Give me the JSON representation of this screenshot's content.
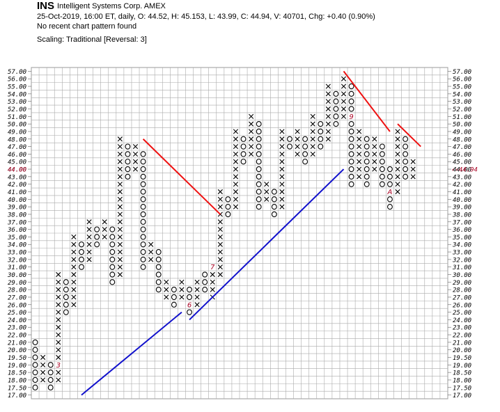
{
  "header": {
    "symbol": "INS",
    "company": "Intelligent Systems Corp.  AMEX",
    "ohlc_line": "25-Oct-2019, 16:00 ET, daily, O: 44.52, H: 45.153, L: 43.99, C: 44.94, V: 40701, Chg: +0.40 (0.90%)",
    "pattern_line": "No recent chart pattern found",
    "scaling_line": "Scaling: Traditional [Reversal: 3]"
  },
  "colors": {
    "x_mark": "#000000",
    "o_mark": "#000000",
    "month_label": "#aa0022",
    "resistance": "#ee1111",
    "support": "#1111cc",
    "grid": "#aaaaaa",
    "price_marker": "#aa0022"
  },
  "chart_data": {
    "type": "point_and_figure",
    "reversal": 3,
    "price_levels": [
      "17.00",
      "17.50",
      "18.00",
      "18.50",
      "19.00",
      "19.50",
      "20.00",
      "21.00",
      "22.00",
      "23.00",
      "24.00",
      "25.00",
      "26.00",
      "27.00",
      "28.00",
      "29.00",
      "30.00",
      "31.00",
      "32.00",
      "33.00",
      "34.00",
      "35.00",
      "36.00",
      "37.00",
      "38.00",
      "39.00",
      "40.00",
      "41.00",
      "42.00",
      "43.00",
      "44.00",
      "45.00",
      "46.00",
      "47.00",
      "48.00",
      "49.00",
      "50.00",
      "51.00",
      "52.00",
      "53.00",
      "54.00",
      "55.00",
      "56.00",
      "57.00"
    ],
    "current_price_left": "44.00",
    "current_price_right": "44.94",
    "columns": [
      {
        "type": "O",
        "high": "21.00",
        "low": "17.50"
      },
      {
        "type": "X",
        "high": "19.50",
        "low": "18.00"
      },
      {
        "type": "O",
        "high": "19.00",
        "low": "17.50"
      },
      {
        "type": "X",
        "high": "30.00",
        "low": "18.00"
      },
      {
        "type": "O",
        "high": "29.00",
        "low": "25.00"
      },
      {
        "type": "X",
        "high": "35.00",
        "low": "26.00"
      },
      {
        "type": "O",
        "high": "34.00",
        "low": "31.00"
      },
      {
        "type": "X",
        "high": "37.00",
        "low": "32.00"
      },
      {
        "type": "O",
        "high": "36.00",
        "low": "34.00"
      },
      {
        "type": "X",
        "high": "37.00",
        "low": "35.00"
      },
      {
        "type": "O",
        "high": "36.00",
        "low": "29.00"
      },
      {
        "type": "X",
        "high": "48.00",
        "low": "30.00"
      },
      {
        "type": "O",
        "high": "47.00",
        "low": "43.00"
      },
      {
        "type": "X",
        "high": "47.00",
        "low": "44.00"
      },
      {
        "type": "O",
        "high": "46.00",
        "low": "31.00"
      },
      {
        "type": "X",
        "high": "34.00",
        "low": "32.00"
      },
      {
        "type": "O",
        "high": "33.00",
        "low": "28.00"
      },
      {
        "type": "X",
        "high": "29.00",
        "low": "27.00"
      },
      {
        "type": "O",
        "high": "28.00",
        "low": "26.00"
      },
      {
        "type": "X",
        "high": "29.00",
        "low": "27.00"
      },
      {
        "type": "O",
        "high": "28.00",
        "low": "25.00"
      },
      {
        "type": "X",
        "high": "29.00",
        "low": "26.00"
      },
      {
        "type": "O",
        "high": "30.00",
        "low": "28.00"
      },
      {
        "type": "X",
        "high": "31.00",
        "low": "27.00"
      },
      {
        "type": "X",
        "high": "41.00",
        "low": "30.00"
      },
      {
        "type": "O",
        "high": "40.00",
        "low": "38.00"
      },
      {
        "type": "X",
        "high": "49.00",
        "low": "39.00"
      },
      {
        "type": "O",
        "high": "48.00",
        "low": "45.00"
      },
      {
        "type": "X",
        "high": "51.00",
        "low": "46.00"
      },
      {
        "type": "O",
        "high": "50.00",
        "low": "39.00"
      },
      {
        "type": "X",
        "high": "42.00",
        "low": "40.00"
      },
      {
        "type": "O",
        "high": "41.00",
        "low": "38.00"
      },
      {
        "type": "X",
        "high": "49.00",
        "low": "39.00"
      },
      {
        "type": "O",
        "high": "48.00",
        "low": "47.00"
      },
      {
        "type": "X",
        "high": "49.00",
        "low": "46.00"
      },
      {
        "type": "O",
        "high": "48.00",
        "low": "45.00"
      },
      {
        "type": "X",
        "high": "51.00",
        "low": "46.00"
      },
      {
        "type": "O",
        "high": "50.00",
        "low": "47.00"
      },
      {
        "type": "X",
        "high": "55.00",
        "low": "48.00"
      },
      {
        "type": "O",
        "high": "54.00",
        "low": "50.00"
      },
      {
        "type": "X",
        "high": "56.00",
        "low": "51.00"
      },
      {
        "type": "O",
        "high": "55.00",
        "low": "42.00"
      },
      {
        "type": "X",
        "high": "49.00",
        "low": "43.00"
      },
      {
        "type": "O",
        "high": "48.00",
        "low": "42.00"
      },
      {
        "type": "X",
        "high": "48.00",
        "low": "44.00"
      },
      {
        "type": "O",
        "high": "47.00",
        "low": "42.00"
      },
      {
        "type": "O",
        "high": "44.00",
        "low": "39.00"
      },
      {
        "type": "X",
        "high": "49.00",
        "low": "41.00"
      },
      {
        "type": "O",
        "high": "48.00",
        "low": "43.00"
      },
      {
        "type": "X",
        "high": "45.00",
        "low": "43.00"
      }
    ],
    "month_markers": [
      {
        "label": "3",
        "col": 3,
        "level": "19.00"
      },
      {
        "label": "4",
        "col": 7,
        "level": "31.00"
      },
      {
        "label": "5",
        "col": 11,
        "level": "29.00"
      },
      {
        "label": "6",
        "col": 20,
        "level": "26.00"
      },
      {
        "label": "7",
        "col": 23,
        "level": "31.00"
      },
      {
        "label": "8",
        "col": 30,
        "level": "50.00"
      },
      {
        "label": "9",
        "col": 41,
        "level": "51.00"
      },
      {
        "label": "A",
        "col": 46,
        "level": "41.00"
      }
    ],
    "trendlines": [
      {
        "kind": "resistance",
        "from_col": 14,
        "from_level": "48.00",
        "to_col": 24,
        "to_level": "38.00"
      },
      {
        "kind": "support",
        "from_col": 6,
        "from_level": "17.00",
        "to_col": 19,
        "to_level": "25.00"
      },
      {
        "kind": "support",
        "from_col": 20,
        "from_level": "24.00",
        "to_col": 40,
        "to_level": "44.00"
      },
      {
        "kind": "resistance",
        "from_col": 40,
        "from_level": "57.00",
        "to_col": 46,
        "to_level": "49.00"
      },
      {
        "kind": "resistance",
        "from_col": 47,
        "from_level": "50.00",
        "to_col": 50,
        "to_level": "47.00"
      }
    ]
  }
}
